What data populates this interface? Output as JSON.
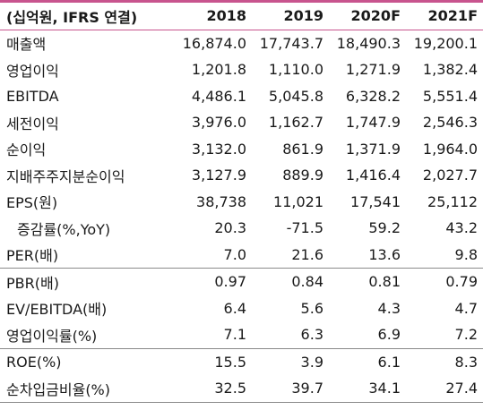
{
  "header": {
    "label": "(십억원, IFRS 연결)",
    "years": [
      "2018",
      "2019",
      "2020F",
      "2021F"
    ]
  },
  "rows": [
    {
      "label": "매출액",
      "values": [
        "16,874.0",
        "17,743.7",
        "18,490.3",
        "19,200.1"
      ]
    },
    {
      "label": "영업이익",
      "values": [
        "1,201.8",
        "1,110.0",
        "1,271.9",
        "1,382.4"
      ]
    },
    {
      "label": "EBITDA",
      "values": [
        "4,486.1",
        "5,045.8",
        "6,328.2",
        "5,551.4"
      ]
    },
    {
      "label": "세전이익",
      "values": [
        "3,976.0",
        "1,162.7",
        "1,747.9",
        "2,546.3"
      ]
    },
    {
      "label": "순이익",
      "values": [
        "3,132.0",
        "861.9",
        "1,371.9",
        "1,964.0"
      ]
    },
    {
      "label": "지배주주지분순이익",
      "values": [
        "3,127.9",
        "889.9",
        "1,416.4",
        "2,027.7"
      ]
    },
    {
      "label": "EPS(원)",
      "values": [
        "38,738",
        "11,021",
        "17,541",
        "25,112"
      ]
    },
    {
      "label": "증감률(%,YoY)",
      "values": [
        "20.3",
        "-71.5",
        "59.2",
        "43.2"
      ]
    },
    {
      "label": "PER(배)",
      "values": [
        "7.0",
        "21.6",
        "13.6",
        "9.8"
      ]
    },
    {
      "label": "PBR(배)",
      "values": [
        "0.97",
        "0.84",
        "0.81",
        "0.79"
      ]
    },
    {
      "label": "EV/EBITDA(배)",
      "values": [
        "6.4",
        "5.6",
        "4.3",
        "4.7"
      ]
    },
    {
      "label": "영업이익률(%)",
      "values": [
        "7.1",
        "6.3",
        "6.9",
        "7.2"
      ]
    },
    {
      "label": "ROE(%)",
      "values": [
        "15.5",
        "3.9",
        "6.1",
        "8.3"
      ]
    },
    {
      "label": "순차입금비율(%)",
      "values": [
        "32.5",
        "39.7",
        "34.1",
        "27.4"
      ]
    }
  ],
  "colors": {
    "accent_rule": "#c8548e",
    "separator": "#8a8a8a"
  }
}
